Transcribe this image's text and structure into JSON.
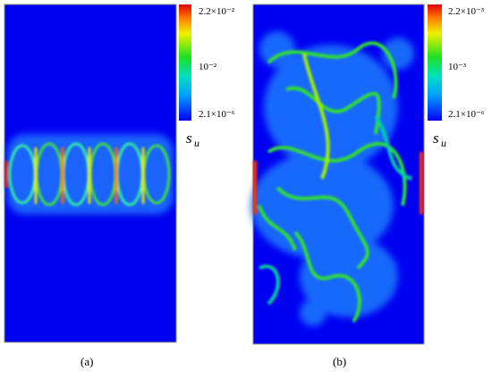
{
  "panels": [
    {
      "label": "(a)",
      "colorbar": {
        "ticks": [
          "2.2×10⁻²",
          "10⁻²",
          "2.1×10⁻⁶"
        ],
        "symbol": "s",
        "subscript": "u"
      }
    },
    {
      "label": "(b)",
      "colorbar": {
        "ticks": [
          "2.2×10⁻³",
          "10⁻³",
          "2.1×10⁻⁶"
        ],
        "symbol": "s",
        "subscript": "u"
      }
    }
  ]
}
